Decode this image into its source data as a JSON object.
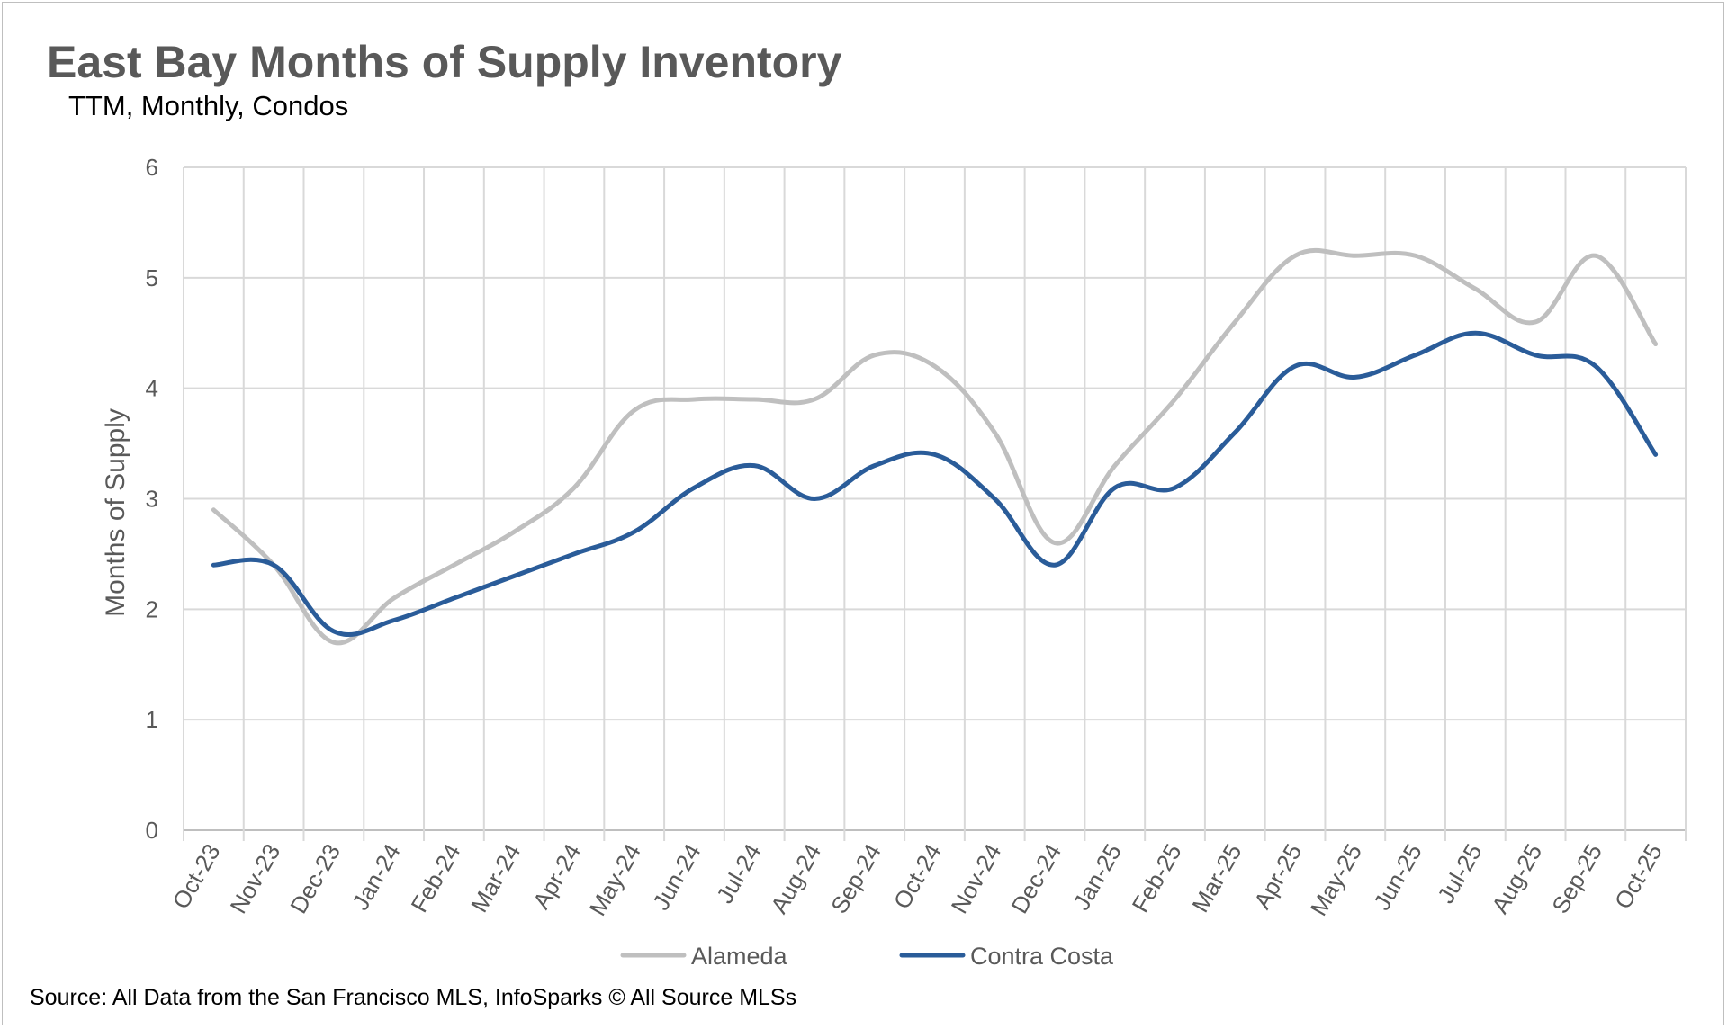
{
  "chart_data": {
    "type": "line",
    "title": "East Bay Months of Supply Inventory",
    "subtitle": "TTM, Monthly, Condos",
    "ylabel": "Months of Supply",
    "xlabel": "",
    "ylim": [
      0,
      6
    ],
    "yticks": [
      0,
      1,
      2,
      3,
      4,
      5,
      6
    ],
    "grid": true,
    "legend": "bottom",
    "categories": [
      "Oct-23",
      "Nov-23",
      "Dec-23",
      "Jan-24",
      "Feb-24",
      "Mar-24",
      "Apr-24",
      "May-24",
      "Jun-24",
      "Jul-24",
      "Aug-24",
      "Sep-24",
      "Oct-24",
      "Nov-24",
      "Dec-24",
      "Jan-25",
      "Feb-25",
      "Mar-25",
      "Apr-25",
      "May-25",
      "Jun-25",
      "Jul-25",
      "Aug-25",
      "Sep-25",
      "Oct-25"
    ],
    "series": [
      {
        "name": "Alameda",
        "color": "#bfbfbf",
        "values": [
          2.9,
          2.4,
          1.7,
          2.1,
          2.4,
          2.7,
          3.1,
          3.8,
          3.9,
          3.9,
          3.9,
          4.3,
          4.2,
          3.6,
          2.6,
          3.3,
          3.9,
          4.6,
          5.2,
          5.2,
          5.2,
          4.9,
          4.6,
          5.2,
          4.4
        ]
      },
      {
        "name": "Contra Costa",
        "color": "#2a5c99",
        "values": [
          2.4,
          2.4,
          1.8,
          1.9,
          2.1,
          2.3,
          2.5,
          2.7,
          3.1,
          3.3,
          3.0,
          3.3,
          3.4,
          3.0,
          2.4,
          3.1,
          3.1,
          3.6,
          4.2,
          4.1,
          4.3,
          4.5,
          4.3,
          4.2,
          3.4
        ]
      }
    ],
    "source": "Source: All Data from the San Francisco MLS, InfoSparks © All Source MLSs"
  }
}
